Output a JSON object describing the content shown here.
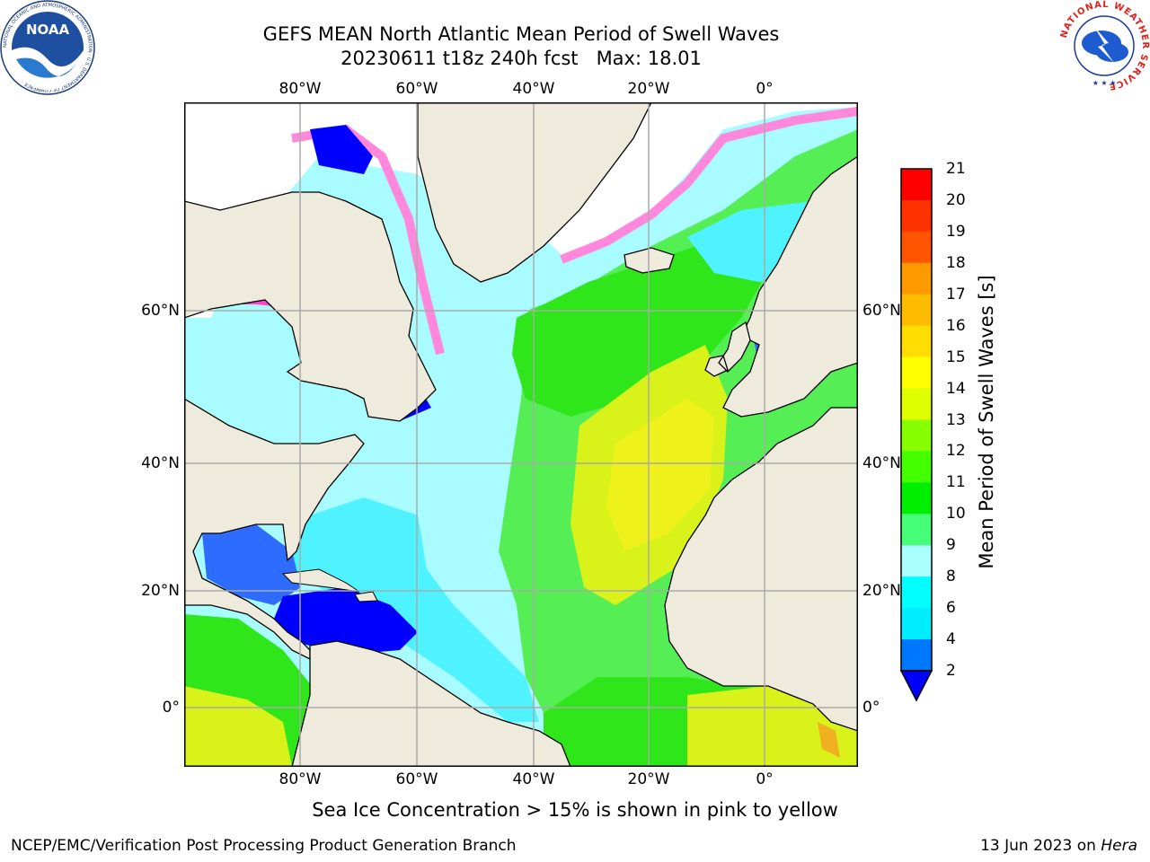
{
  "header": {
    "title_line1": "GEFS MEAN North Atlantic Mean Period of Swell Waves",
    "title_line2": "20230611 t18z 240h fcst   Max: 18.01"
  },
  "logos": {
    "left": "NOAA",
    "left_ring": "NATIONAL OCEANIC AND ATMOSPHERIC ADMINISTRATION · U.S. DEPARTMENT OF COMMERCE ·",
    "right_ring": "NATIONAL WEATHER SERVICE"
  },
  "map": {
    "lon_labels": [
      "80°W",
      "60°W",
      "40°W",
      "20°W",
      "0°"
    ],
    "lat_labels": [
      "60°N",
      "40°N",
      "20°N",
      "0°"
    ]
  },
  "colorbar": {
    "label": "Mean Period of Swell Waves [s]",
    "ticks": [
      "21",
      "20",
      "19",
      "18",
      "17",
      "16",
      "15",
      "14",
      "13",
      "12",
      "11",
      "10",
      "9",
      "8",
      "6",
      "4",
      "2"
    ],
    "colors": [
      "#ff0000",
      "#ff3300",
      "#ff5500",
      "#ff7700",
      "#ff9900",
      "#ffbb00",
      "#ffdd00",
      "#ffff00",
      "#ddff00",
      "#bbff00",
      "#88ff00",
      "#44ff00",
      "#00ee00",
      "#44ff77",
      "#aaffff",
      "#55ffff",
      "#00ffff",
      "#00eeff",
      "#0077ff"
    ],
    "under_color": "#0000ff"
  },
  "colors": {
    "land": "#efebdc",
    "ice": "#ffffff",
    "ocean_light_cyan": "#a8fbff",
    "ocean_cyan": "#4ef3ff",
    "ocean_blue": "#2e6bff",
    "ocean_deep_blue": "#0000ff",
    "ocean_green": "#55ef55",
    "ocean_bright_green": "#2ee61a",
    "ocean_yellow_green": "#d9f21a",
    "ocean_yellow": "#eef21a",
    "ice_pink": "#ff88dd",
    "ice_magenta": "#ff44cc",
    "grid": "#aaaaaa"
  },
  "note": "Sea Ice Concentration > 15% is shown in pink to yellow",
  "footer": {
    "left": "NCEP/EMC/Verification Post Processing Product Generation Branch",
    "right_date": "13 Jun 2023 on ",
    "right_machine": "Hera"
  }
}
